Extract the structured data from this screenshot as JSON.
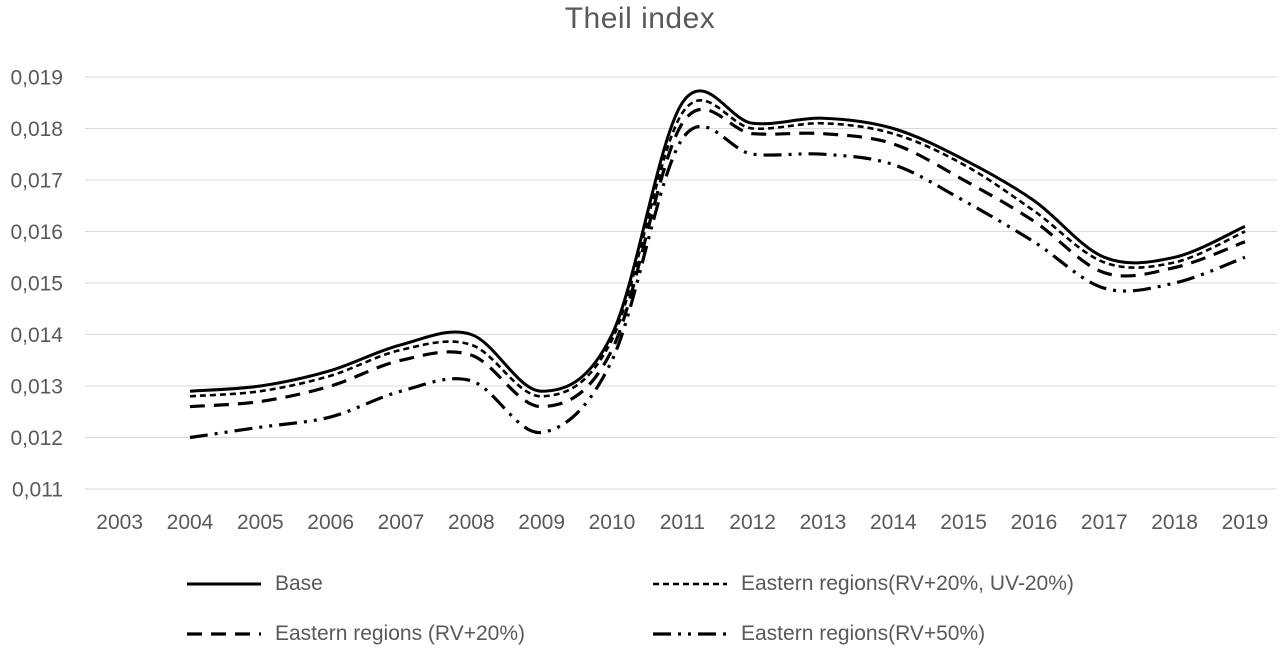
{
  "title": "Theil index",
  "colors": {
    "background": "#ffffff",
    "text": "#595959",
    "gridline": "#d9d9d9",
    "line": "#000000"
  },
  "chart_data": {
    "type": "line",
    "title": "Theil index",
    "xlabel": "",
    "ylabel": "",
    "grid": true,
    "legend_position": "bottom",
    "ylim": [
      0.011,
      0.019
    ],
    "y_ticks": [
      {
        "value": 0.019,
        "label": "0,019"
      },
      {
        "value": 0.018,
        "label": "0,018"
      },
      {
        "value": 0.017,
        "label": "0,017"
      },
      {
        "value": 0.016,
        "label": "0,016"
      },
      {
        "value": 0.015,
        "label": "0,015"
      },
      {
        "value": 0.014,
        "label": "0,014"
      },
      {
        "value": 0.013,
        "label": "0,013"
      },
      {
        "value": 0.012,
        "label": "0,012"
      },
      {
        "value": 0.011,
        "label": "0,011"
      }
    ],
    "x_ticks": [
      2003,
      2004,
      2005,
      2006,
      2007,
      2008,
      2009,
      2010,
      2011,
      2012,
      2013,
      2014,
      2015,
      2016,
      2017,
      2018,
      2019
    ],
    "x": [
      2004,
      2005,
      2006,
      2007,
      2008,
      2009,
      2010,
      2011,
      2012,
      2013,
      2014,
      2015,
      2016,
      2017,
      2018,
      2019
    ],
    "series": [
      {
        "name": "Base",
        "dash": "solid",
        "values": [
          0.0129,
          0.013,
          0.0133,
          0.0138,
          0.014,
          0.0129,
          0.014,
          0.0185,
          0.0181,
          0.0182,
          0.018,
          0.0174,
          0.0166,
          0.0155,
          0.0155,
          0.0161
        ]
      },
      {
        "name": "Eastern regions(RV+20%, UV-20%)",
        "dash": "dotted",
        "values": [
          0.0128,
          0.0129,
          0.0132,
          0.0137,
          0.0138,
          0.0128,
          0.0139,
          0.0183,
          0.018,
          0.0181,
          0.0179,
          0.0173,
          0.0164,
          0.0154,
          0.0154,
          0.016
        ]
      },
      {
        "name": "Eastern regions (RV+20%)",
        "dash": "dashed",
        "values": [
          0.0126,
          0.0127,
          0.013,
          0.0135,
          0.0136,
          0.0126,
          0.0137,
          0.0181,
          0.0179,
          0.0179,
          0.0177,
          0.017,
          0.0162,
          0.0152,
          0.0153,
          0.0158
        ]
      },
      {
        "name": "Eastern regions(RV+50%)",
        "dash": "dash-dot-dot",
        "values": [
          0.012,
          0.0122,
          0.0124,
          0.0129,
          0.0131,
          0.0121,
          0.0135,
          0.0178,
          0.0175,
          0.0175,
          0.0173,
          0.0166,
          0.0158,
          0.0149,
          0.015,
          0.0155
        ]
      }
    ]
  }
}
